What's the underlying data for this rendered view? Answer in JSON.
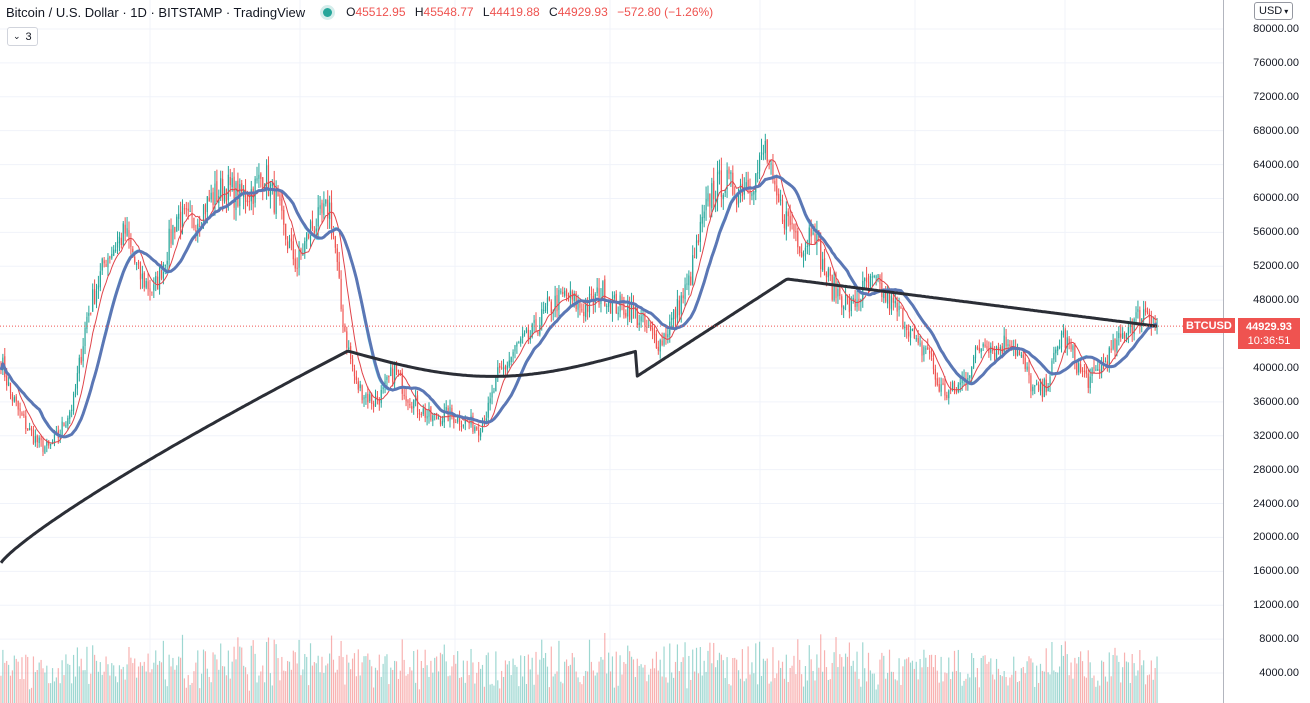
{
  "legend": {
    "symbol_title": "Bitcoin / U.S. Dollar · 1D · BITSTAMP · TradingView",
    "open_label": "O",
    "open": "45512.95",
    "high_label": "H",
    "high": "45548.77",
    "low_label": "L",
    "low": "44419.88",
    "close_label": "C",
    "close": "44929.93",
    "change": "−572.80 (−1.26%)",
    "indicator_count": "3"
  },
  "toolbar": {
    "currency": "USD"
  },
  "price_axis": {
    "ticks": [
      "80000.00",
      "76000.00",
      "72000.00",
      "68000.00",
      "64000.00",
      "60000.00",
      "56000.00",
      "52000.00",
      "48000.00",
      "40000.00",
      "36000.00",
      "32000.00",
      "28000.00",
      "24000.00",
      "20000.00",
      "16000.00",
      "12000.00",
      "8000.00",
      "4000.00"
    ]
  },
  "price_tag": {
    "symbol": "BTCUSD",
    "price": "44929.93",
    "countdown": "10:36:51"
  },
  "colors": {
    "up": "#26a69a",
    "down": "#ef5350",
    "ma_fast": "#e0444a",
    "ma_mid": "#5b77b5",
    "ma_light": "#6fdcef",
    "ma_slow": "#2b2e36"
  },
  "chart_data": {
    "type": "candlestick",
    "ylim": [
      0,
      83000
    ],
    "price_anchors": [
      [
        0,
        41000
      ],
      [
        5,
        37000
      ],
      [
        10,
        34500
      ],
      [
        15,
        32500
      ],
      [
        20,
        31000
      ],
      [
        25,
        30500
      ],
      [
        30,
        32000
      ],
      [
        38,
        36000
      ],
      [
        45,
        46000
      ],
      [
        55,
        53000
      ],
      [
        65,
        56000
      ],
      [
        72,
        51000
      ],
      [
        80,
        49000
      ],
      [
        87,
        54000
      ],
      [
        92,
        58000
      ],
      [
        100,
        57000
      ],
      [
        110,
        60000
      ],
      [
        118,
        61500
      ],
      [
        125,
        60000
      ],
      [
        132,
        61000
      ],
      [
        138,
        63000
      ],
      [
        141,
        61000
      ],
      [
        145,
        59000
      ],
      [
        148,
        56000
      ],
      [
        155,
        52000
      ],
      [
        162,
        56500
      ],
      [
        167,
        57500
      ],
      [
        172,
        59000
      ],
      [
        175,
        54000
      ],
      [
        178,
        47000
      ],
      [
        182,
        42000
      ],
      [
        186,
        38000
      ],
      [
        190,
        37000
      ],
      [
        195,
        36000
      ],
      [
        200,
        37000
      ],
      [
        206,
        40000
      ],
      [
        212,
        37000
      ],
      [
        218,
        35500
      ],
      [
        225,
        34000
      ],
      [
        235,
        34500
      ],
      [
        245,
        33500
      ],
      [
        250,
        33000
      ],
      [
        255,
        35000
      ],
      [
        260,
        39000
      ],
      [
        265,
        40500
      ],
      [
        270,
        42500
      ],
      [
        278,
        44000
      ],
      [
        286,
        47000
      ],
      [
        295,
        48500
      ],
      [
        305,
        47000
      ],
      [
        315,
        49000
      ],
      [
        320,
        47500
      ],
      [
        330,
        47000
      ],
      [
        340,
        44000
      ],
      [
        345,
        43000
      ],
      [
        352,
        46000
      ],
      [
        360,
        50000
      ],
      [
        366,
        56000
      ],
      [
        372,
        61000
      ],
      [
        378,
        62000
      ],
      [
        385,
        61000
      ],
      [
        390,
        62000
      ],
      [
        395,
        62500
      ],
      [
        400,
        66000
      ],
      [
        405,
        60000
      ],
      [
        410,
        58000
      ],
      [
        415,
        56500
      ],
      [
        420,
        54000
      ],
      [
        425,
        57500
      ],
      [
        430,
        52000
      ],
      [
        435,
        49500
      ],
      [
        440,
        48500
      ],
      [
        445,
        47000
      ],
      [
        452,
        49500
      ],
      [
        458,
        50000
      ],
      [
        464,
        48000
      ],
      [
        470,
        46500
      ],
      [
        475,
        45000
      ],
      [
        480,
        42000
      ],
      [
        485,
        42500
      ],
      [
        490,
        38000
      ],
      [
        495,
        37000
      ],
      [
        500,
        37500
      ],
      [
        505,
        39000
      ],
      [
        510,
        41500
      ],
      [
        515,
        43500
      ],
      [
        520,
        42000
      ],
      [
        528,
        43500
      ],
      [
        535,
        40500
      ],
      [
        540,
        37500
      ],
      [
        545,
        37000
      ],
      [
        550,
        40000
      ],
      [
        555,
        44000
      ],
      [
        560,
        42000
      ],
      [
        565,
        39500
      ],
      [
        570,
        38500
      ],
      [
        575,
        40000
      ],
      [
        580,
        41500
      ],
      [
        585,
        43000
      ],
      [
        590,
        45000
      ],
      [
        595,
        46000
      ],
      [
        600,
        47000
      ],
      [
        603,
        45500
      ],
      [
        605,
        44929.93
      ]
    ],
    "moving_averages": [
      {
        "key": "ma_fast",
        "period": 9
      },
      {
        "key": "ma_light",
        "period": 20
      },
      {
        "key": "ma_mid",
        "period": 21
      },
      {
        "key": "ma_slow",
        "period": 200
      }
    ],
    "volume_axis_max": 22000
  }
}
